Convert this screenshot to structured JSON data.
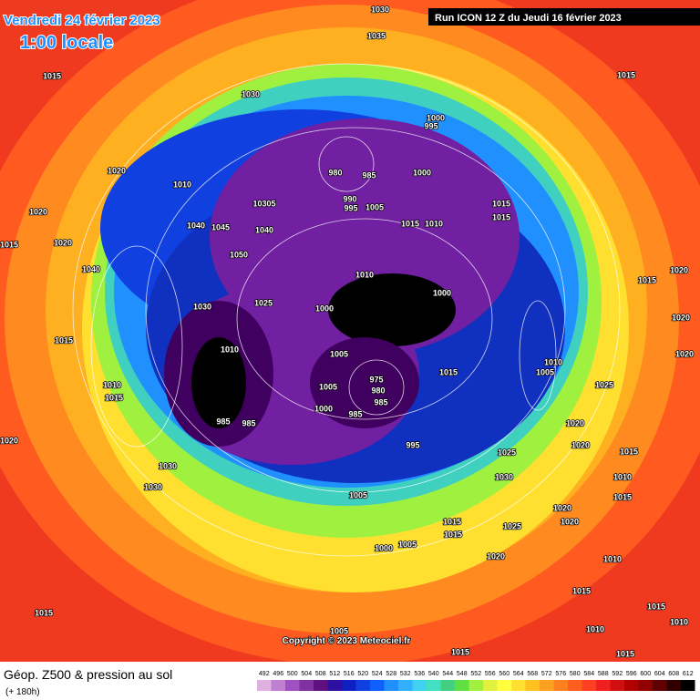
{
  "header": {
    "date": "Vendredi 24 février 2023",
    "time": "1:00 locale",
    "run": "Run ICON 12 Z du Jeudi 16 février 2023"
  },
  "map": {
    "isobar_labels": [
      1030,
      1035,
      1015,
      1015,
      1030,
      1000,
      995,
      1020,
      1010,
      980,
      985,
      1000,
      990,
      995,
      1005,
      1015,
      1010,
      1015,
      1015,
      10305,
      1040,
      1045,
      1040,
      1050,
      1020,
      1020,
      1015,
      1040,
      1010,
      1000,
      1025,
      1000,
      1030,
      1010,
      1005,
      975,
      980,
      985,
      1005,
      1000,
      985,
      985,
      985,
      995,
      1015,
      1005,
      1010,
      1025,
      1020,
      1020,
      1010,
      1015,
      1020,
      1020,
      1020,
      1015,
      1025,
      1015,
      1010,
      1015,
      1020,
      1030,
      1030,
      1005,
      1030,
      1020,
      1025,
      1020,
      1020,
      1015,
      1015,
      1000,
      1005,
      1015,
      1010,
      1015,
      1015,
      1010,
      1010,
      1015,
      1015,
      1005,
      1015
    ],
    "copyright": "Copyright © 2023 Meteociel.fr"
  },
  "footer": {
    "title": "Géop. Z500 & pression au sol",
    "lead": "(+ 180h)",
    "legend_values": [
      492,
      496,
      500,
      504,
      508,
      512,
      516,
      520,
      524,
      528,
      532,
      536,
      540,
      544,
      548,
      552,
      556,
      560,
      564,
      568,
      572,
      576,
      580,
      584,
      588,
      592,
      596,
      600,
      604,
      608,
      612
    ],
    "legend_colors": [
      "#e0b0e0",
      "#c080d0",
      "#a050c0",
      "#8030a0",
      "#601080",
      "#3010a0",
      "#1020c0",
      "#1040e0",
      "#1060ff",
      "#2090ff",
      "#30b0ff",
      "#40d0f0",
      "#40e0c0",
      "#40d080",
      "#60e040",
      "#a0f040",
      "#e0f040",
      "#ffff40",
      "#ffe030",
      "#ffc020",
      "#ffa020",
      "#ff8020",
      "#ff6020",
      "#ff4020",
      "#f02020",
      "#d01010",
      "#b00000",
      "#900000",
      "#600000",
      "#300000",
      "#000000"
    ]
  }
}
